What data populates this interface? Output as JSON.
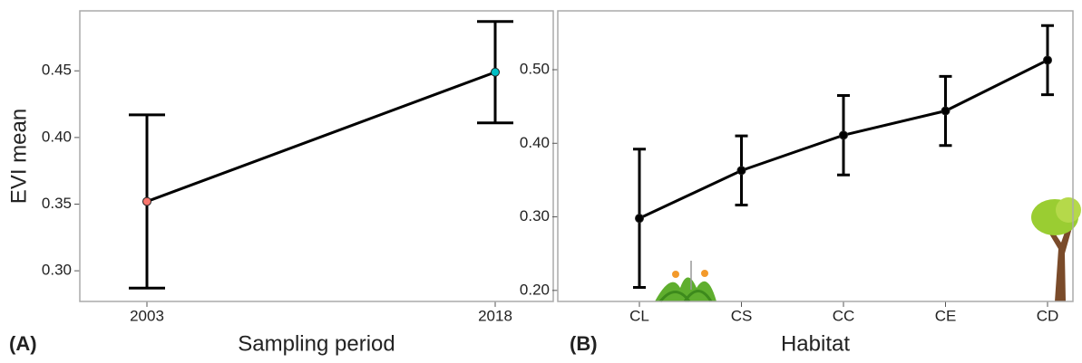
{
  "chart_data": [
    {
      "type": "line",
      "panel_label": "(A)",
      "x_label": "Sampling period",
      "y_label": "EVI mean",
      "categories": [
        "2003",
        "2018"
      ],
      "values": [
        0.352,
        0.449
      ],
      "errors": [
        0.065,
        0.038
      ],
      "point_colors": [
        "#f8766d",
        "#00bfc4"
      ],
      "color": "#000000",
      "ylim": [
        0.277,
        0.495
      ],
      "yticks": [
        {
          "value": 0.3,
          "label": "0.30"
        },
        {
          "value": 0.35,
          "label": "0.35"
        },
        {
          "value": 0.4,
          "label": "0.40"
        },
        {
          "value": 0.45,
          "label": "0.45"
        }
      ]
    },
    {
      "type": "line",
      "panel_label": "(B)",
      "x_label": "Habitat",
      "categories": [
        "CL",
        "CS",
        "CC",
        "CE",
        "CD"
      ],
      "values": [
        0.298,
        0.363,
        0.411,
        0.444,
        0.513
      ],
      "errors": [
        0.094,
        0.047,
        0.054,
        0.047,
        0.047
      ],
      "color": "#000000",
      "ylim": [
        0.185,
        0.58
      ],
      "yticks": [
        {
          "value": 0.2,
          "label": "0.20"
        },
        {
          "value": 0.3,
          "label": "0.30"
        },
        {
          "value": 0.4,
          "label": "0.40"
        },
        {
          "value": 0.5,
          "label": "0.50"
        }
      ]
    }
  ]
}
